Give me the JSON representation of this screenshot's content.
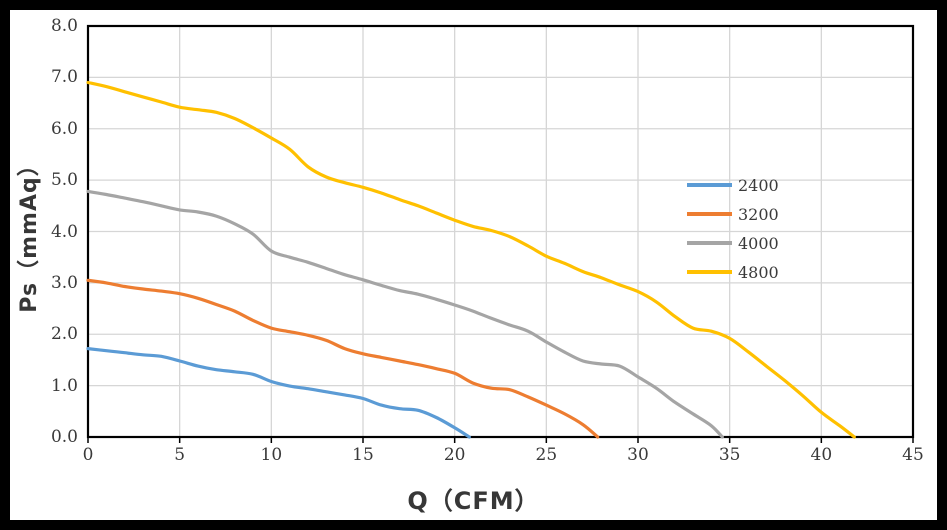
{
  "chart_data": {
    "type": "line",
    "title": "",
    "xlabel": "Q（CFM）",
    "ylabel": "Ps（mmAq）",
    "xlim": [
      0,
      45
    ],
    "ylim": [
      0,
      8
    ],
    "x_ticks": [
      0,
      5,
      10,
      15,
      20,
      25,
      30,
      35,
      40,
      45
    ],
    "y_tick_labels": [
      "0.0",
      "1.0",
      "2.0",
      "3.0",
      "4.0",
      "5.0",
      "6.0",
      "7.0",
      "8.0"
    ],
    "grid": true,
    "legend_position": "inside-right",
    "series": [
      {
        "name": "2400",
        "color": "#5B9BD5",
        "points": [
          [
            0,
            1.72
          ],
          [
            1,
            1.68
          ],
          [
            2,
            1.64
          ],
          [
            3,
            1.6
          ],
          [
            4,
            1.57
          ],
          [
            5,
            1.48
          ],
          [
            6,
            1.38
          ],
          [
            7,
            1.31
          ],
          [
            8,
            1.27
          ],
          [
            9,
            1.22
          ],
          [
            10,
            1.08
          ],
          [
            11,
            0.99
          ],
          [
            12,
            0.94
          ],
          [
            13,
            0.88
          ],
          [
            14,
            0.82
          ],
          [
            15,
            0.75
          ],
          [
            16,
            0.62
          ],
          [
            17,
            0.55
          ],
          [
            18,
            0.52
          ],
          [
            19,
            0.38
          ],
          [
            20,
            0.18
          ],
          [
            20.8,
            0.0
          ]
        ]
      },
      {
        "name": "3200",
        "color": "#ED7D31",
        "points": [
          [
            0,
            3.05
          ],
          [
            1,
            3.0
          ],
          [
            2,
            2.93
          ],
          [
            3,
            2.88
          ],
          [
            4,
            2.84
          ],
          [
            5,
            2.79
          ],
          [
            6,
            2.7
          ],
          [
            7,
            2.58
          ],
          [
            8,
            2.45
          ],
          [
            9,
            2.27
          ],
          [
            10,
            2.12
          ],
          [
            11,
            2.05
          ],
          [
            12,
            1.98
          ],
          [
            13,
            1.88
          ],
          [
            14,
            1.72
          ],
          [
            15,
            1.62
          ],
          [
            16,
            1.55
          ],
          [
            17,
            1.48
          ],
          [
            18,
            1.41
          ],
          [
            19,
            1.33
          ],
          [
            20,
            1.24
          ],
          [
            21,
            1.05
          ],
          [
            22,
            0.95
          ],
          [
            23,
            0.92
          ],
          [
            24,
            0.78
          ],
          [
            25,
            0.62
          ],
          [
            26,
            0.45
          ],
          [
            27,
            0.24
          ],
          [
            27.8,
            0.0
          ]
        ]
      },
      {
        "name": "4000",
        "color": "#A5A5A5",
        "points": [
          [
            0,
            4.78
          ],
          [
            1,
            4.72
          ],
          [
            2,
            4.65
          ],
          [
            3,
            4.58
          ],
          [
            4,
            4.5
          ],
          [
            5,
            4.42
          ],
          [
            6,
            4.38
          ],
          [
            7,
            4.3
          ],
          [
            8,
            4.15
          ],
          [
            9,
            3.95
          ],
          [
            10,
            3.62
          ],
          [
            11,
            3.5
          ],
          [
            12,
            3.4
          ],
          [
            13,
            3.28
          ],
          [
            14,
            3.16
          ],
          [
            15,
            3.06
          ],
          [
            16,
            2.95
          ],
          [
            17,
            2.85
          ],
          [
            18,
            2.78
          ],
          [
            19,
            2.68
          ],
          [
            20,
            2.57
          ],
          [
            21,
            2.45
          ],
          [
            22,
            2.31
          ],
          [
            23,
            2.18
          ],
          [
            24,
            2.06
          ],
          [
            25,
            1.85
          ],
          [
            26,
            1.65
          ],
          [
            27,
            1.48
          ],
          [
            28,
            1.42
          ],
          [
            29,
            1.38
          ],
          [
            30,
            1.17
          ],
          [
            31,
            0.95
          ],
          [
            32,
            0.68
          ],
          [
            33,
            0.45
          ],
          [
            34,
            0.22
          ],
          [
            34.6,
            0.0
          ]
        ]
      },
      {
        "name": "4800",
        "color": "#FFC000",
        "points": [
          [
            0,
            6.9
          ],
          [
            1,
            6.82
          ],
          [
            2,
            6.72
          ],
          [
            3,
            6.62
          ],
          [
            4,
            6.52
          ],
          [
            5,
            6.42
          ],
          [
            6,
            6.37
          ],
          [
            7,
            6.32
          ],
          [
            8,
            6.2
          ],
          [
            9,
            6.02
          ],
          [
            10,
            5.82
          ],
          [
            11,
            5.6
          ],
          [
            12,
            5.26
          ],
          [
            13,
            5.06
          ],
          [
            14,
            4.95
          ],
          [
            15,
            4.86
          ],
          [
            16,
            4.75
          ],
          [
            17,
            4.62
          ],
          [
            18,
            4.5
          ],
          [
            19,
            4.36
          ],
          [
            20,
            4.22
          ],
          [
            21,
            4.1
          ],
          [
            22,
            4.02
          ],
          [
            23,
            3.9
          ],
          [
            24,
            3.72
          ],
          [
            25,
            3.52
          ],
          [
            26,
            3.38
          ],
          [
            27,
            3.22
          ],
          [
            28,
            3.1
          ],
          [
            29,
            2.96
          ],
          [
            30,
            2.83
          ],
          [
            31,
            2.63
          ],
          [
            32,
            2.35
          ],
          [
            33,
            2.12
          ],
          [
            34,
            2.06
          ],
          [
            35,
            1.92
          ],
          [
            36,
            1.66
          ],
          [
            37,
            1.38
          ],
          [
            38,
            1.1
          ],
          [
            39,
            0.8
          ],
          [
            40,
            0.48
          ],
          [
            41,
            0.22
          ],
          [
            41.8,
            0.0
          ]
        ]
      }
    ],
    "colors": {
      "frame": "#000000",
      "plot_border": "#000000",
      "gridline": "#D6D6D6",
      "tick_text": "#3A3A3A",
      "title_text": "#373737",
      "background": "#FFFFFF"
    }
  }
}
